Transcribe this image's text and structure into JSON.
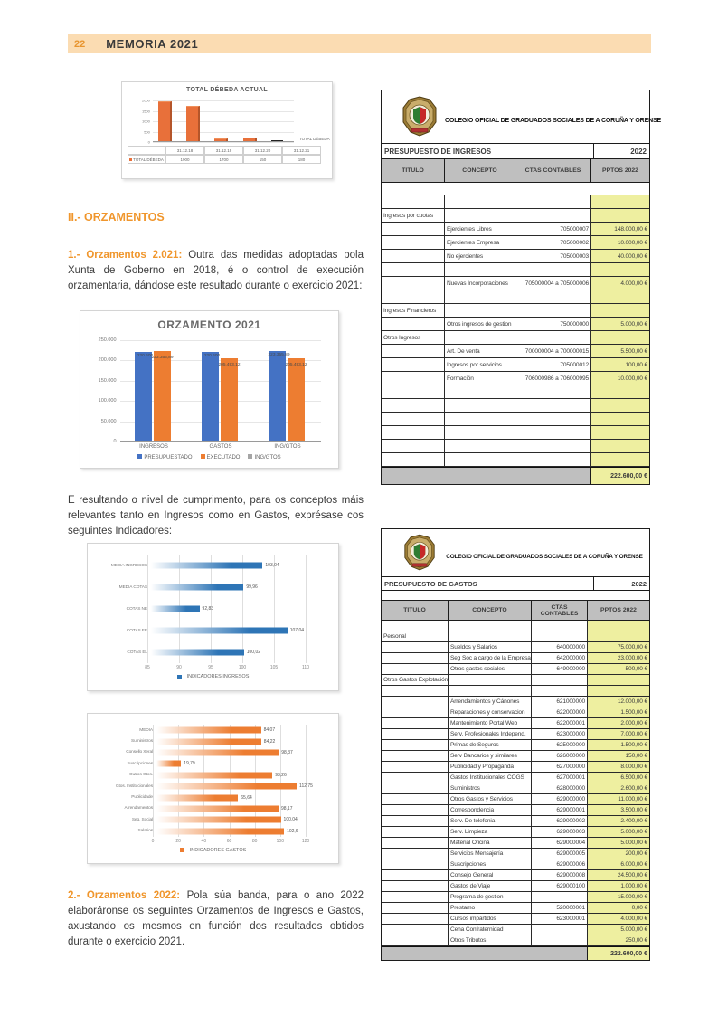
{
  "header": {
    "page_number": "22",
    "title": "MEMORIA 2021"
  },
  "body": {
    "section_heading": "II.- ORZAMENTOS",
    "para1_label": "1.- Orzamentos 2.021:",
    "para1_text": "Outra das medidas adoptadas pola Xunta de Goberno en 2018, é o control de execución orzamentaria, dándose este resultado durante o exercicio 2021:",
    "para2_text": "E resultando o nivel de cumprimento, para os conceptos máis relevantes tanto en Ingresos como en Gastos, exprésase cos seguintes Indicadores:",
    "para3_label": "2.- Orzamentos 2022:",
    "para3_text": "Pola súa banda, para o ano 2022 elaboráronse os seguintes Orzamentos de Ingresos e Gastos, axustando os mesmos en función dos resultados obtidos durante o exercicio 2021."
  },
  "colors": {
    "accent_orange": "#f0962c",
    "header_bg": "#fbdcb2",
    "chart_blue": "#4472c4",
    "chart_orange": "#ed7d31",
    "chart_gray": "#a5a5a5",
    "hbar_blue": "#2e75b6",
    "hbar_orange": "#ed7d31",
    "mini_orange": "#e8703a",
    "cell_yellow": "#eeefa0",
    "header_gray": "#bfbfbf"
  },
  "chart_data": [
    {
      "type": "bar",
      "title": "TOTAL DÉBEDA ACTUAL",
      "categories": [
        "31.12.18",
        "31.12.19",
        "31.12.20",
        "31.12.21"
      ],
      "values": [
        1900,
        1700,
        150,
        180
      ],
      "value_labels": [
        "1900",
        "1700",
        "150",
        "180"
      ],
      "series_name": "TOTAL DÉBEDA",
      "yticks": [
        "0",
        "500",
        "1000",
        "1500",
        "2000"
      ],
      "ylim": [
        0,
        2000
      ],
      "legend_position": "right"
    },
    {
      "type": "bar",
      "title": "ORZAMENTO 2021",
      "categories": [
        "INGRESOS",
        "GASTOS",
        "ING/GTOS"
      ],
      "series": [
        {
          "name": "PRESUPUESTADO",
          "color": "#4472c4",
          "values": [
            220600,
            220600,
            223355.89
          ],
          "labels": [
            "220.600",
            "220.600",
            "223.355,89"
          ]
        },
        {
          "name": "EXECUTADO",
          "color": "#ed7d31",
          "values": [
            223355.89,
            205493.12,
            205493.12
          ],
          "labels": [
            "223.355,89",
            "205.493,12",
            "205.493,12"
          ]
        },
        {
          "name": "ING/GTOS",
          "color": "#a5a5a5",
          "values": [
            0,
            0,
            0
          ],
          "labels": [
            "",
            "",
            ""
          ]
        }
      ],
      "yticks": [
        "0",
        "50.000",
        "100.000",
        "150.000",
        "200.000",
        "250.000"
      ],
      "ylim": [
        0,
        250000
      ],
      "legend_position": "bottom"
    },
    {
      "type": "bar",
      "orientation": "horizontal",
      "categories": [
        "MEDIA INGRESOS",
        "MEDIA COTAS",
        "COTAS NE",
        "COTAS EE",
        "COTAS EL"
      ],
      "values": [
        103.04,
        99.96,
        92.83,
        107.04,
        100.02
      ],
      "labels": [
        "103,04",
        "99,96",
        "92,83",
        "107,04",
        "100,02"
      ],
      "xticks": [
        "85",
        "90",
        "95",
        "100",
        "105",
        "110"
      ],
      "xlim": [
        85,
        110
      ],
      "legend": "INDICADORES INGRESOS",
      "color": "#2e75b6"
    },
    {
      "type": "bar",
      "orientation": "horizontal",
      "categories": [
        "MEDIA",
        "Suministros",
        "Consello Xeral",
        "Suscripciones",
        "Outros Gtos.",
        "Gtos. Institucionales",
        "Publicidade",
        "Arrendamentos",
        "Seg. Social",
        "Salarios"
      ],
      "values": [
        84.07,
        84.22,
        98.37,
        19.79,
        93.26,
        112.75,
        65.64,
        98.17,
        100.04,
        102.6
      ],
      "labels": [
        "84,07",
        "84,22",
        "98,37",
        "19,79",
        "93,26",
        "112,75",
        "65,64",
        "98,17",
        "100,04",
        "102,6"
      ],
      "xticks": [
        "0",
        "20",
        "40",
        "60",
        "80",
        "100",
        "120"
      ],
      "xlim": [
        0,
        120
      ],
      "legend": "INDICADORES GASTOS",
      "color": "#ed7d31"
    }
  ],
  "tables": [
    {
      "org": "COLEGIO OFICIAL DE GRADUADOS SOCIALES DE A CORUÑA Y ORENSE",
      "title": "PRESUPUESTO DE INGRESOS",
      "year": "2022",
      "headers": [
        "TITULO",
        "CONCEPTO",
        "CTAS CONTABLES",
        "PPTOS 2022"
      ],
      "rows": [
        {
          "k": "blank"
        },
        {
          "k": "section",
          "t": "Ingresos por cuotas"
        },
        {
          "c": "Ejercientes Libres",
          "a": "705000007",
          "v": "148.000,00 €"
        },
        {
          "c": "Ejercientes Empresa",
          "a": "705000002",
          "v": "10.000,00 €"
        },
        {
          "c": "No ejercientes",
          "a": "705000003",
          "v": "40.000,00 €"
        },
        {
          "k": "blank"
        },
        {
          "c": "Nuevas Incorporaciones",
          "a": "705000004 a 705000006",
          "v": "4.000,00 €"
        },
        {
          "k": "blank"
        },
        {
          "k": "section",
          "t": "Ingresos Financieros"
        },
        {
          "c": "Otros ingresos de gestion",
          "a": "750000000",
          "v": "5.000,00 €"
        },
        {
          "k": "section",
          "t": "Otros Ingresos"
        },
        {
          "c": "Art. De venta",
          "a": "700000004 a 700000015",
          "v": "5.500,00 €"
        },
        {
          "c": "Ingresos por servicios",
          "a": "705000012",
          "v": "100,00 €"
        },
        {
          "c": "Formación",
          "a": "706000986 a 706000995",
          "v": "10.000,00 €"
        },
        {
          "k": "blank"
        },
        {
          "k": "blank"
        },
        {
          "k": "blank"
        },
        {
          "k": "blank"
        },
        {
          "k": "blank"
        },
        {
          "k": "blank"
        }
      ],
      "total": "222.600,00 €"
    },
    {
      "org": "COLEGIO OFICIAL DE GRADUADOS SOCIALES DE A CORUÑA Y ORENSE",
      "title": "PRESUPUESTO DE GASTOS",
      "year": "2022",
      "headers": [
        "TITULO",
        "CONCEPTO",
        "CTAS CONTABLES",
        "PPTOS 2022"
      ],
      "rows": [
        {
          "k": "blank"
        },
        {
          "k": "section",
          "t": "Personal"
        },
        {
          "c": "Sueldos y Salarios",
          "a": "640000000",
          "v": "75.000,00 €"
        },
        {
          "c": "Seg Soc a cargo de la Empresa",
          "a": "642000000",
          "v": "23.000,00 €"
        },
        {
          "c": "Otros gastos sociales",
          "a": "649000000",
          "v": "500,00 €"
        },
        {
          "k": "section",
          "t": "Otros Gastos Explotación"
        },
        {
          "k": "blank"
        },
        {
          "c": "Arrendamientos y Cánones",
          "a": "621000000",
          "v": "12.000,00 €"
        },
        {
          "c": "Reparaciones y conservacion",
          "a": "622000000",
          "v": "1.500,00 €"
        },
        {
          "c": "Mantenimiento Portal Web",
          "a": "622000001",
          "v": "2.000,00 €"
        },
        {
          "c": "Serv. Profesionales Independ.",
          "a": "623000000",
          "v": "7.000,00 €"
        },
        {
          "c": "Primas de Seguros",
          "a": "625000000",
          "v": "1.500,00 €"
        },
        {
          "c": "Serv Bancarios y similares",
          "a": "626000000",
          "v": "150,00 €"
        },
        {
          "c": "Publicidad y Propaganda",
          "a": "627000000",
          "v": "8.000,00 €"
        },
        {
          "c": "Gastos Institucionales COGS",
          "a": "627000001",
          "v": "6.500,00 €"
        },
        {
          "c": "Suministros",
          "a": "628000000",
          "v": "2.600,00 €"
        },
        {
          "c": "Otros Gastos y Servicios",
          "a": "629000000",
          "v": "11.000,00 €"
        },
        {
          "c": "Correspondencia",
          "a": "629000001",
          "v": "3.500,00 €"
        },
        {
          "c": "Serv. De telefonia",
          "a": "629000002",
          "v": "2.400,00 €"
        },
        {
          "c": "Serv. Limpieza",
          "a": "629000003",
          "v": "5.000,00 €"
        },
        {
          "c": "Material Oficina",
          "a": "629000004",
          "v": "5.000,00 €"
        },
        {
          "c": "Servicios Mensajería",
          "a": "629000005",
          "v": "200,00 €"
        },
        {
          "c": "Suscripciones",
          "a": "629000006",
          "v": "6.000,00 €"
        },
        {
          "c": "Consejo General",
          "a": "629000008",
          "v": "24.500,00 €"
        },
        {
          "c": "Gastos de Viaje",
          "a": "629000100",
          "v": "1.000,00 €"
        },
        {
          "c": "Programa de gestion",
          "a": "",
          "v": "15.000,00 €"
        },
        {
          "c": "Prestamo",
          "a": "520000001",
          "v": "0,00 €"
        },
        {
          "c": "Cursos impartidos",
          "a": "623000001",
          "v": "4.000,00 €"
        },
        {
          "c": "Cena Confraternidad",
          "a": "",
          "v": "5.000,00 €"
        },
        {
          "c": "Otros Tributos",
          "a": "",
          "v": "250,00 €"
        }
      ],
      "total": "222.600,00 €"
    }
  ]
}
